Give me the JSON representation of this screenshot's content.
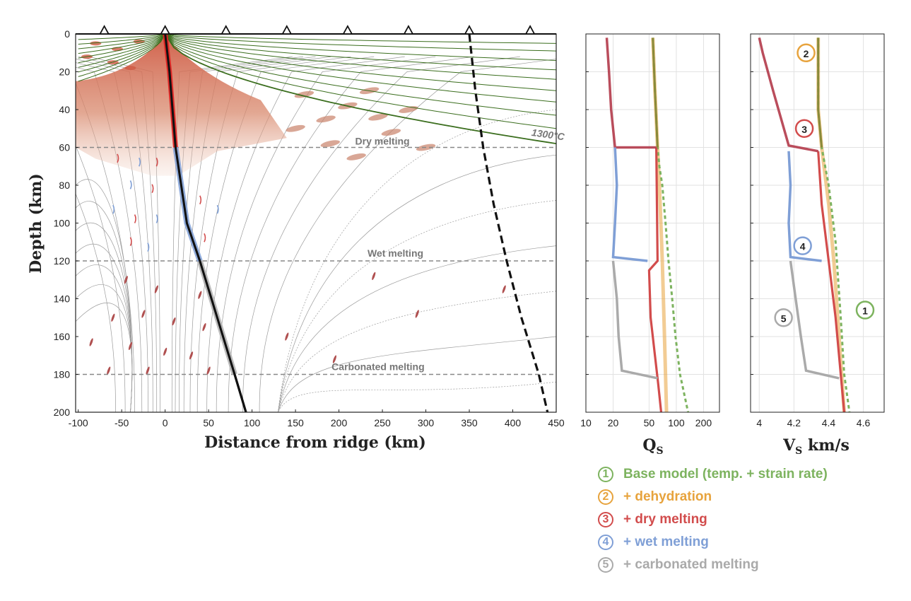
{
  "colors": {
    "base": "#7db35f",
    "dehydration": "#e7a33d",
    "dry": "#d24c4c",
    "wet": "#7f9fd6",
    "carbonated": "#aaaaaa",
    "melt_fill": "#cf5a43",
    "isotherm": "#3b6e1e",
    "boundary": "#888888"
  },
  "chart_data": [
    {
      "type": "line",
      "xlabel": "Distance from ridge (km)",
      "ylabel": "Depth (km)",
      "xlim": [
        -103,
        450
      ],
      "ylim": [
        200,
        0
      ],
      "x_ticks": [
        "-100",
        "-50",
        "0",
        "50",
        "100",
        "150",
        "200",
        "250",
        "300",
        "350",
        "400",
        "450"
      ],
      "y_ticks": [
        "0",
        "20",
        "40",
        "60",
        "80",
        "100",
        "120",
        "140",
        "160",
        "180",
        "200"
      ],
      "stations_x": [
        -70,
        0,
        70,
        140,
        210,
        280,
        350,
        420
      ],
      "annotations": [
        {
          "text": "Dry melting",
          "depth": 60
        },
        {
          "text": "Wet melting",
          "depth": 120
        },
        {
          "text": "Carbonated melting",
          "depth": 180
        },
        {
          "text": "1300°C"
        }
      ],
      "series": [
        {
          "x": [
            0,
            5,
            12,
            25,
            40,
            60,
            80,
            93
          ],
          "y": [
            0,
            20,
            60,
            100,
            120,
            150,
            180,
            200
          ]
        },
        {
          "x": [
            350,
            357,
            366,
            378,
            393,
            410,
            430,
            440
          ],
          "y": [
            0,
            30,
            60,
            90,
            120,
            150,
            180,
            200
          ]
        }
      ]
    },
    {
      "type": "line",
      "xlabel": "Q",
      "xlabel_sub": "S",
      "xscale": "log",
      "xlim": [
        10,
        300
      ],
      "ylim": [
        200,
        0
      ],
      "x_ticks": [
        "10",
        "20",
        "50",
        "100",
        "200"
      ],
      "series": [
        {
          "name": "1",
          "x": [
            55,
            58,
            62,
            65,
            70,
            76,
            82,
            90,
            98,
            110,
            135
          ],
          "y": [
            2,
            30,
            60,
            70,
            80,
            100,
            120,
            140,
            160,
            180,
            200
          ]
        },
        {
          "name": "2",
          "x": [
            55,
            58,
            62,
            65,
            70,
            74,
            78
          ],
          "y": [
            2,
            30,
            60,
            80,
            120,
            160,
            200
          ]
        },
        {
          "name": "3",
          "x": [
            17,
            18,
            19,
            21,
            21,
            60
          ],
          "y": [
            2,
            20,
            40,
            60,
            60,
            60
          ]
        },
        {
          "name": "4",
          "x": [
            21,
            22,
            21,
            20,
            20,
            48
          ],
          "y": [
            60,
            80,
            100,
            118,
            118,
            120
          ]
        },
        {
          "name": "5",
          "x": [
            20,
            22,
            23,
            25,
            25,
            62
          ],
          "y": [
            120,
            140,
            160,
            178,
            178,
            182
          ]
        },
        {
          "name": "main",
          "x": [
            60,
            62,
            50,
            52,
            58,
            63,
            68
          ],
          "y": [
            60,
            120,
            125,
            150,
            170,
            185,
            200
          ]
        }
      ]
    },
    {
      "type": "line",
      "xlabel": "V",
      "xlabel_sub": "S",
      "xlabel_unit": " km/s",
      "xlim": [
        3.95,
        4.72
      ],
      "ylim": [
        200,
        0
      ],
      "x_ticks": [
        "4",
        "4.2",
        "4.4",
        "4.6"
      ],
      "series": [
        {
          "name": "1",
          "x": [
            4.34,
            4.34,
            4.36,
            4.4,
            4.44,
            4.47,
            4.49,
            4.52
          ],
          "y": [
            2,
            40,
            60,
            80,
            110,
            150,
            180,
            200
          ]
        },
        {
          "name": "2",
          "x": [
            4.34,
            4.34,
            4.36,
            4.4,
            4.43,
            4.46,
            4.49
          ],
          "y": [
            2,
            40,
            60,
            90,
            120,
            160,
            200
          ]
        },
        {
          "name": "3",
          "x": [
            4.0,
            4.02,
            4.08,
            4.17,
            4.17,
            4.34
          ],
          "y": [
            2,
            10,
            30,
            59,
            59,
            62
          ]
        },
        {
          "name": "4",
          "x": [
            4.17,
            4.18,
            4.17,
            4.18,
            4.18,
            4.36
          ],
          "y": [
            62,
            80,
            100,
            118,
            118,
            120
          ]
        },
        {
          "name": "5",
          "x": [
            4.18,
            4.21,
            4.24,
            4.27,
            4.27,
            4.46
          ],
          "y": [
            120,
            140,
            160,
            178,
            178,
            182
          ]
        },
        {
          "name": "main",
          "x": [
            4.34,
            4.36,
            4.4,
            4.44,
            4.47,
            4.49
          ],
          "y": [
            62,
            90,
            120,
            150,
            180,
            200
          ]
        }
      ]
    }
  ],
  "legend": [
    {
      "num": "1",
      "label": "Base model (temp. + strain rate)",
      "color_key": "base"
    },
    {
      "num": "2",
      "label": "+ dehydration",
      "color_key": "dehydration"
    },
    {
      "num": "3",
      "label": "+ dry melting",
      "color_key": "dry"
    },
    {
      "num": "4",
      "label": "+ wet melting",
      "color_key": "wet"
    },
    {
      "num": "5",
      "label": "+ carbonated melting",
      "color_key": "carbonated"
    }
  ],
  "panel_labels": [
    "2",
    "3",
    "4",
    "5",
    "1"
  ]
}
